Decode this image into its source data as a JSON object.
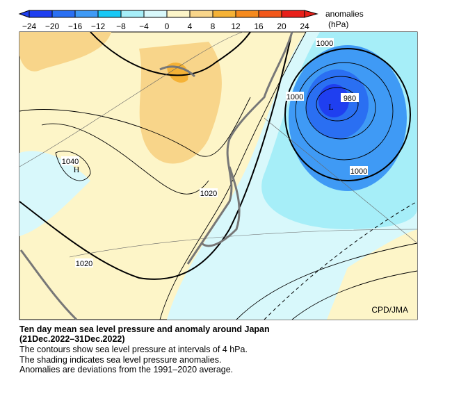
{
  "colorbar": {
    "title": "anomalies",
    "unit": "(hPa)",
    "ticks": [
      {
        "value": -24,
        "label": "−24"
      },
      {
        "value": -20,
        "label": "−20"
      },
      {
        "value": -16,
        "label": "−16"
      },
      {
        "value": -12,
        "label": "−12"
      },
      {
        "value": -8,
        "label": "−8"
      },
      {
        "value": -4,
        "label": "−4"
      },
      0,
      4,
      8,
      12,
      16,
      20,
      24
    ],
    "colors": [
      "#1f3ff0",
      "#2a6ff2",
      "#3f9af5",
      "#18c8f5",
      "#a6eef8",
      "#d8f8fb",
      "#fdf5c8",
      "#f8d58a",
      "#f5b236",
      "#f58a1e",
      "#f2571a",
      "#e8201a"
    ]
  },
  "map": {
    "contour_labels": [
      "1000",
      "1000",
      "980",
      "1040",
      "1020",
      "1020",
      "1000"
    ],
    "pressure_centers": [
      "L",
      "H"
    ],
    "credit": "CPD/JMA"
  },
  "caption": {
    "title": "Ten day mean sea level pressure and anomaly around Japan",
    "period": "(21Dec.2022–31Dec.2022)",
    "lines": [
      "The contours show sea level pressure at intervals of 4 hPa.",
      "The shading indicates sea level pressure anomalies.",
      "Anomalies are deviations from the 1991–2020 average."
    ]
  }
}
